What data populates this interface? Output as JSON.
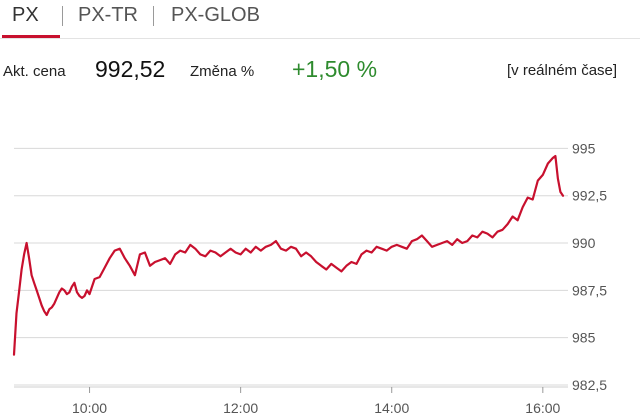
{
  "tabs": [
    {
      "label": "PX",
      "active": true
    },
    {
      "label": "PX-TR",
      "active": false
    },
    {
      "label": "PX-GLOB",
      "active": false
    }
  ],
  "quote": {
    "price_label": "Akt. cena",
    "price": "992,52",
    "change_label": "Změna %",
    "change": "+1,50 %",
    "realtime_label": "[v reálném čase]"
  },
  "colors": {
    "accent": "#c8102e",
    "line": "#c8102e",
    "positive": "#2e8b2e",
    "grid": "#d8d8d8"
  },
  "chart_data": {
    "type": "line",
    "title": "",
    "xlabel": "",
    "ylabel": "",
    "x_tick_labels": [
      "10:00",
      "12:00",
      "14:00",
      "16:00"
    ],
    "y_tick_labels": [
      "995",
      "992,5",
      "990",
      "987,5",
      "985",
      "982,5"
    ],
    "y_ticks": [
      995,
      992.5,
      990,
      987.5,
      985,
      982.5
    ],
    "ylim": [
      982.5,
      996.5
    ],
    "x_range": [
      "09:00",
      "16:20"
    ],
    "grid": "horizontal",
    "series": [
      {
        "x": [
          "09:00",
          "09:02",
          "09:04",
          "09:06",
          "09:08",
          "09:10",
          "09:12",
          "09:14",
          "09:16",
          "09:18",
          "09:20",
          "09:22",
          "09:24",
          "09:26",
          "09:28",
          "09:30",
          "09:32",
          "09:34",
          "09:36",
          "09:38",
          "09:40",
          "09:42",
          "09:44",
          "09:46",
          "09:48",
          "09:50",
          "09:52",
          "09:54",
          "09:56",
          "09:58",
          "10:00",
          "10:04",
          "10:08",
          "10:12",
          "10:16",
          "10:20",
          "10:24",
          "10:28",
          "10:32",
          "10:36",
          "10:40",
          "10:44",
          "10:48",
          "10:52",
          "10:56",
          "11:00",
          "11:04",
          "11:08",
          "11:12",
          "11:16",
          "11:20",
          "11:24",
          "11:28",
          "11:32",
          "11:36",
          "11:40",
          "11:44",
          "11:48",
          "11:52",
          "11:56",
          "12:00",
          "12:04",
          "12:08",
          "12:12",
          "12:16",
          "12:20",
          "12:24",
          "12:28",
          "12:32",
          "12:36",
          "12:40",
          "12:44",
          "12:48",
          "12:52",
          "12:56",
          "13:00",
          "13:04",
          "13:08",
          "13:12",
          "13:16",
          "13:20",
          "13:24",
          "13:28",
          "13:32",
          "13:36",
          "13:40",
          "13:44",
          "13:48",
          "13:52",
          "13:56",
          "14:00",
          "14:04",
          "14:08",
          "14:12",
          "14:16",
          "14:20",
          "14:24",
          "14:28",
          "14:32",
          "14:36",
          "14:40",
          "14:44",
          "14:48",
          "14:52",
          "14:56",
          "15:00",
          "15:04",
          "15:08",
          "15:12",
          "15:16",
          "15:20",
          "15:24",
          "15:28",
          "15:32",
          "15:36",
          "15:40",
          "15:44",
          "15:48",
          "15:52",
          "15:56",
          "16:00",
          "16:04",
          "16:08",
          "16:10",
          "16:12",
          "16:14",
          "16:16"
        ],
        "y": [
          984.1,
          986.3,
          987.4,
          988.6,
          989.4,
          990.0,
          989.2,
          988.3,
          987.9,
          987.5,
          987.1,
          986.7,
          986.4,
          986.2,
          986.5,
          986.6,
          986.8,
          987.1,
          987.4,
          987.6,
          987.5,
          987.3,
          987.4,
          987.7,
          987.9,
          987.4,
          987.2,
          987.1,
          987.2,
          987.5,
          987.3,
          988.1,
          988.2,
          988.7,
          989.2,
          989.6,
          989.7,
          989.2,
          988.8,
          988.3,
          989.4,
          989.5,
          988.8,
          989.0,
          989.1,
          989.2,
          988.9,
          989.4,
          989.6,
          989.5,
          989.9,
          989.7,
          989.4,
          989.3,
          989.6,
          989.5,
          989.3,
          989.5,
          989.7,
          989.5,
          989.4,
          989.7,
          989.5,
          989.8,
          989.6,
          989.8,
          989.9,
          990.1,
          989.7,
          989.6,
          989.8,
          989.7,
          989.3,
          989.5,
          989.3,
          989.0,
          988.8,
          988.6,
          988.9,
          988.7,
          988.5,
          988.8,
          989.0,
          988.9,
          989.4,
          989.6,
          989.5,
          989.8,
          989.7,
          989.6,
          989.8,
          989.9,
          989.8,
          989.7,
          990.1,
          990.2,
          990.4,
          990.1,
          989.8,
          989.9,
          990.0,
          990.1,
          989.9,
          990.2,
          990.0,
          990.1,
          990.4,
          990.3,
          990.6,
          990.5,
          990.3,
          990.6,
          990.7,
          991.0,
          991.4,
          991.2,
          991.9,
          992.4,
          992.3,
          993.3,
          993.6,
          994.2,
          994.5,
          994.6,
          993.4,
          992.7,
          992.5
        ]
      }
    ]
  }
}
